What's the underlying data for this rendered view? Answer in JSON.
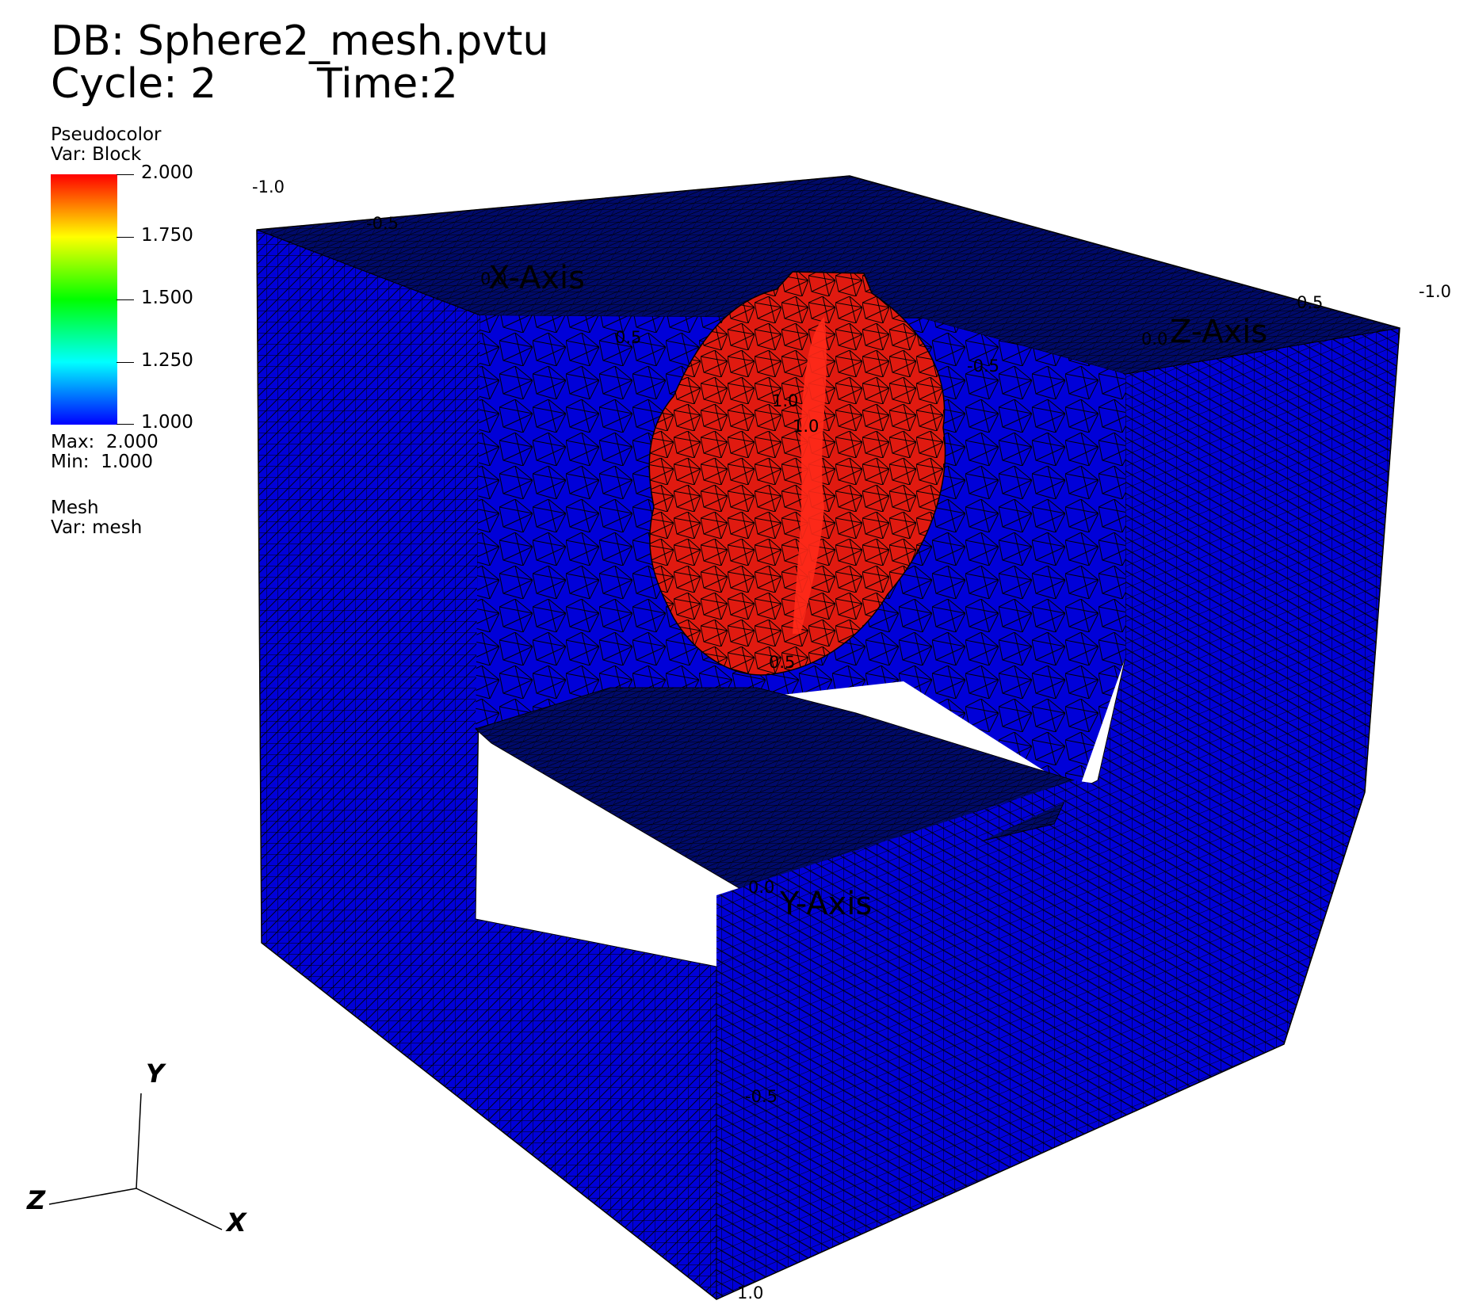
{
  "header": {
    "db": "DB: Sphere2_mesh.pvtu",
    "cycle": "Cycle: 2",
    "time": "Time:2"
  },
  "legend": {
    "plot_type": "Pseudocolor",
    "var": "Var: Block",
    "ticks": [
      "2.000",
      "1.750",
      "1.500",
      "1.250",
      "1.000"
    ],
    "max": "Max:  2.000",
    "min": "Min:  1.000",
    "mesh_type": "Mesh",
    "mesh_var": "Var: mesh",
    "colors": [
      "#ff0000",
      "#ffff00",
      "#00ff00",
      "#00ffff",
      "#0000ff"
    ]
  },
  "axes": {
    "x_title": "X-Axis",
    "y_title": "Y-Axis",
    "z_title": "Z-Axis",
    "labels": [
      "-1.0",
      "-0.5",
      "0.0",
      "0.5",
      "-1.0",
      "0.5",
      "0.0",
      "-0.5",
      "1.0",
      "1.0",
      "0.5",
      "0.0",
      "-0.5",
      "1.0"
    ]
  },
  "triad": {
    "x": "X",
    "y": "Y",
    "z": "Z"
  },
  "scene": {
    "mesh_color": "#0000d8",
    "cutaway_color": "#000a6a",
    "sphere_color": "#e01a10",
    "wire_color": "#000000"
  }
}
